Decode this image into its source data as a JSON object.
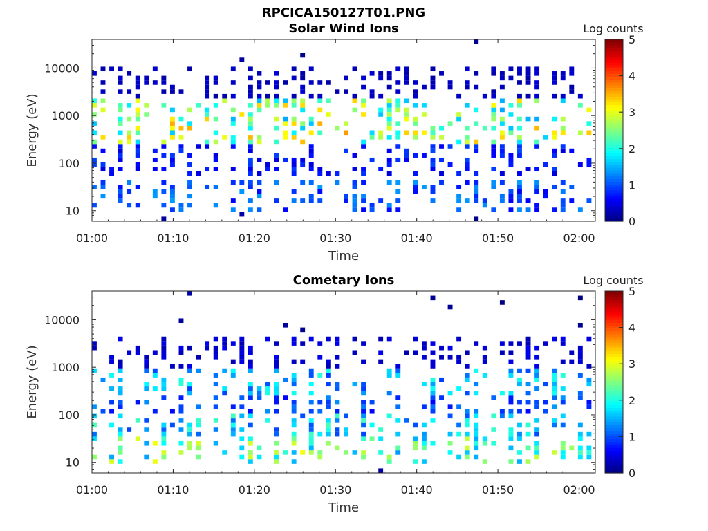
{
  "figure_title": "RPCICA150127T01.PNG",
  "chart_data": [
    {
      "type": "heatmap",
      "title": "Solar Wind Ions",
      "xlabel": "Time",
      "ylabel": "Energy (eV)",
      "x_ticks": [
        "01:00",
        "01:10",
        "01:20",
        "01:30",
        "01:40",
        "01:50",
        "02:00"
      ],
      "x_range_min": [
        0,
        62
      ],
      "y_scale": "log",
      "y_ticks": [
        10,
        100,
        1000,
        10000
      ],
      "y_tick_labels": [
        "10",
        "100",
        "1000",
        "10000"
      ],
      "y_range": [
        6,
        40000
      ],
      "colorbar": {
        "label": "Log counts",
        "range": [
          0,
          5
        ],
        "ticks": [
          "0",
          "1",
          "2",
          "3",
          "4",
          "5"
        ],
        "colormap": "jet"
      },
      "bands": [
        {
          "energy_ev": 20,
          "mean_log_counts": 1.0
        },
        {
          "energy_ev": 120,
          "mean_log_counts": 0.7
        },
        {
          "energy_ev": 450,
          "mean_log_counts": 2.6
        },
        {
          "energy_ev": 1100,
          "mean_log_counts": 2.4
        },
        {
          "energy_ev": 5000,
          "mean_log_counts": 0.3
        }
      ]
    },
    {
      "type": "heatmap",
      "title": "Cometary Ions",
      "xlabel": "Time",
      "ylabel": "Energy (eV)",
      "x_ticks": [
        "01:00",
        "01:10",
        "01:20",
        "01:30",
        "01:40",
        "01:50",
        "02:00"
      ],
      "x_range_min": [
        0,
        62
      ],
      "y_scale": "log",
      "y_ticks": [
        10,
        100,
        1000,
        10000
      ],
      "y_tick_labels": [
        "10",
        "100",
        "1000",
        "10000"
      ],
      "y_range": [
        6,
        40000
      ],
      "colorbar": {
        "label": "Log counts",
        "range": [
          0,
          5
        ],
        "ticks": [
          "0",
          "1",
          "2",
          "3",
          "4",
          "5"
        ],
        "colormap": "jet"
      },
      "bands": [
        {
          "energy_ev": 20,
          "mean_log_counts": 2.2
        },
        {
          "energy_ev": 60,
          "mean_log_counts": 1.6
        },
        {
          "energy_ev": 150,
          "mean_log_counts": 1.0
        },
        {
          "energy_ev": 500,
          "mean_log_counts": 1.5
        },
        {
          "energy_ev": 1800,
          "mean_log_counts": 0.4
        }
      ]
    }
  ]
}
